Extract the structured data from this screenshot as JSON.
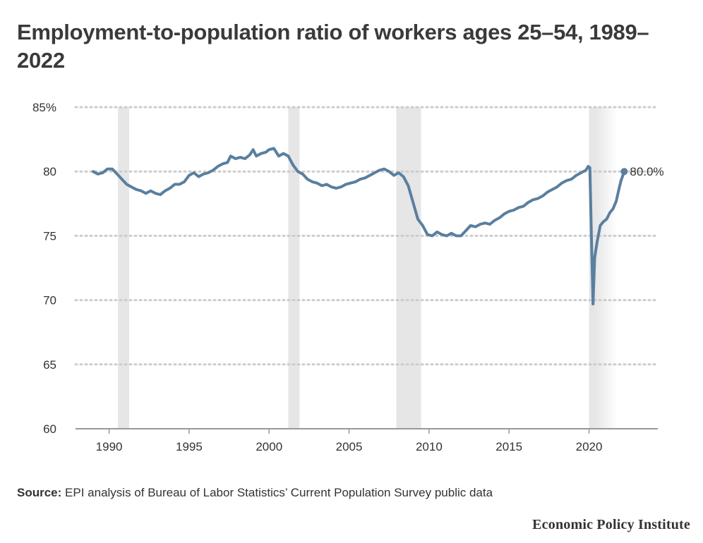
{
  "title": "Employment-to-population ratio of workers ages 25–54, 1989–2022",
  "source_label": "Source:",
  "source_text": "EPI analysis of Bureau of Labor Statistics’ Current Population Survey public data",
  "publisher": "Economic Policy Institute",
  "colors": {
    "line": "#5a7f9f",
    "recession": "#e6e6e6",
    "grid": "#cccccc",
    "axis": "#999999",
    "text": "#333333"
  },
  "chart_data": {
    "type": "line",
    "title": "Employment-to-population ratio of workers ages 25–54, 1989–2022",
    "xlabel": "",
    "ylabel": "",
    "xlim": [
      1987.9,
      2024.3
    ],
    "ylim": [
      60,
      85
    ],
    "x_ticks": [
      1990,
      1995,
      2000,
      2005,
      2010,
      2015,
      2020
    ],
    "y_ticks": [
      {
        "value": 85,
        "label": "85%"
      },
      {
        "value": 80,
        "label": "80"
      },
      {
        "value": 75,
        "label": "75"
      },
      {
        "value": 70,
        "label": "70"
      },
      {
        "value": 65,
        "label": "65"
      },
      {
        "value": 60,
        "label": "60"
      }
    ],
    "grid": true,
    "recessions": [
      [
        1990.55,
        1991.25
      ],
      [
        2001.2,
        2001.9
      ],
      [
        2007.95,
        2009.5
      ],
      [
        2020.0,
        2020.35
      ]
    ],
    "shaded_period": [
      2020.0,
      2021.8
    ],
    "end_label": "80.0%",
    "series": [
      {
        "name": "",
        "points": [
          [
            1989.0,
            80.0
          ],
          [
            1989.3,
            79.8
          ],
          [
            1989.6,
            79.9
          ],
          [
            1989.9,
            80.2
          ],
          [
            1990.2,
            80.2
          ],
          [
            1990.5,
            79.8
          ],
          [
            1990.8,
            79.4
          ],
          [
            1991.1,
            79.0
          ],
          [
            1991.4,
            78.8
          ],
          [
            1991.7,
            78.6
          ],
          [
            1992.0,
            78.5
          ],
          [
            1992.3,
            78.3
          ],
          [
            1992.6,
            78.5
          ],
          [
            1992.9,
            78.3
          ],
          [
            1993.2,
            78.2
          ],
          [
            1993.5,
            78.5
          ],
          [
            1993.8,
            78.7
          ],
          [
            1994.1,
            79.0
          ],
          [
            1994.4,
            79.0
          ],
          [
            1994.7,
            79.2
          ],
          [
            1995.0,
            79.7
          ],
          [
            1995.3,
            79.9
          ],
          [
            1995.6,
            79.6
          ],
          [
            1995.9,
            79.8
          ],
          [
            1996.2,
            79.9
          ],
          [
            1996.5,
            80.1
          ],
          [
            1996.8,
            80.4
          ],
          [
            1997.1,
            80.6
          ],
          [
            1997.4,
            80.7
          ],
          [
            1997.6,
            81.2
          ],
          [
            1997.9,
            81.0
          ],
          [
            1998.2,
            81.1
          ],
          [
            1998.5,
            81.0
          ],
          [
            1998.8,
            81.3
          ],
          [
            1999.0,
            81.7
          ],
          [
            1999.2,
            81.2
          ],
          [
            1999.5,
            81.4
          ],
          [
            1999.8,
            81.5
          ],
          [
            2000.0,
            81.7
          ],
          [
            2000.3,
            81.8
          ],
          [
            2000.6,
            81.2
          ],
          [
            2000.9,
            81.4
          ],
          [
            2001.2,
            81.2
          ],
          [
            2001.5,
            80.5
          ],
          [
            2001.8,
            80.0
          ],
          [
            2002.1,
            79.8
          ],
          [
            2002.4,
            79.4
          ],
          [
            2002.7,
            79.2
          ],
          [
            2003.0,
            79.1
          ],
          [
            2003.3,
            78.9
          ],
          [
            2003.6,
            79.0
          ],
          [
            2003.9,
            78.8
          ],
          [
            2004.2,
            78.7
          ],
          [
            2004.5,
            78.8
          ],
          [
            2004.8,
            79.0
          ],
          [
            2005.1,
            79.1
          ],
          [
            2005.4,
            79.2
          ],
          [
            2005.7,
            79.4
          ],
          [
            2006.0,
            79.5
          ],
          [
            2006.3,
            79.7
          ],
          [
            2006.6,
            79.9
          ],
          [
            2006.9,
            80.1
          ],
          [
            2007.2,
            80.2
          ],
          [
            2007.5,
            80.0
          ],
          [
            2007.8,
            79.7
          ],
          [
            2008.1,
            79.9
          ],
          [
            2008.4,
            79.6
          ],
          [
            2008.7,
            78.9
          ],
          [
            2009.0,
            77.6
          ],
          [
            2009.3,
            76.3
          ],
          [
            2009.6,
            75.8
          ],
          [
            2009.9,
            75.1
          ],
          [
            2010.2,
            75.0
          ],
          [
            2010.5,
            75.3
          ],
          [
            2010.8,
            75.1
          ],
          [
            2011.1,
            75.0
          ],
          [
            2011.4,
            75.2
          ],
          [
            2011.7,
            75.0
          ],
          [
            2012.0,
            75.0
          ],
          [
            2012.3,
            75.4
          ],
          [
            2012.6,
            75.8
          ],
          [
            2012.9,
            75.7
          ],
          [
            2013.2,
            75.9
          ],
          [
            2013.5,
            76.0
          ],
          [
            2013.8,
            75.9
          ],
          [
            2014.1,
            76.2
          ],
          [
            2014.4,
            76.4
          ],
          [
            2014.7,
            76.7
          ],
          [
            2015.0,
            76.9
          ],
          [
            2015.3,
            77.0
          ],
          [
            2015.6,
            77.2
          ],
          [
            2015.9,
            77.3
          ],
          [
            2016.2,
            77.6
          ],
          [
            2016.5,
            77.8
          ],
          [
            2016.8,
            77.9
          ],
          [
            2017.1,
            78.1
          ],
          [
            2017.4,
            78.4
          ],
          [
            2017.7,
            78.6
          ],
          [
            2018.0,
            78.8
          ],
          [
            2018.3,
            79.1
          ],
          [
            2018.6,
            79.3
          ],
          [
            2018.9,
            79.4
          ],
          [
            2019.2,
            79.7
          ],
          [
            2019.5,
            79.9
          ],
          [
            2019.8,
            80.1
          ],
          [
            2019.95,
            80.4
          ],
          [
            2020.05,
            80.3
          ],
          [
            2020.15,
            75.0
          ],
          [
            2020.25,
            69.7
          ],
          [
            2020.35,
            73.3
          ],
          [
            2020.5,
            74.5
          ],
          [
            2020.7,
            75.8
          ],
          [
            2020.9,
            76.1
          ],
          [
            2021.1,
            76.3
          ],
          [
            2021.3,
            76.8
          ],
          [
            2021.5,
            77.1
          ],
          [
            2021.7,
            77.7
          ],
          [
            2021.9,
            78.8
          ],
          [
            2022.0,
            79.3
          ],
          [
            2022.2,
            80.0
          ]
        ]
      }
    ]
  }
}
